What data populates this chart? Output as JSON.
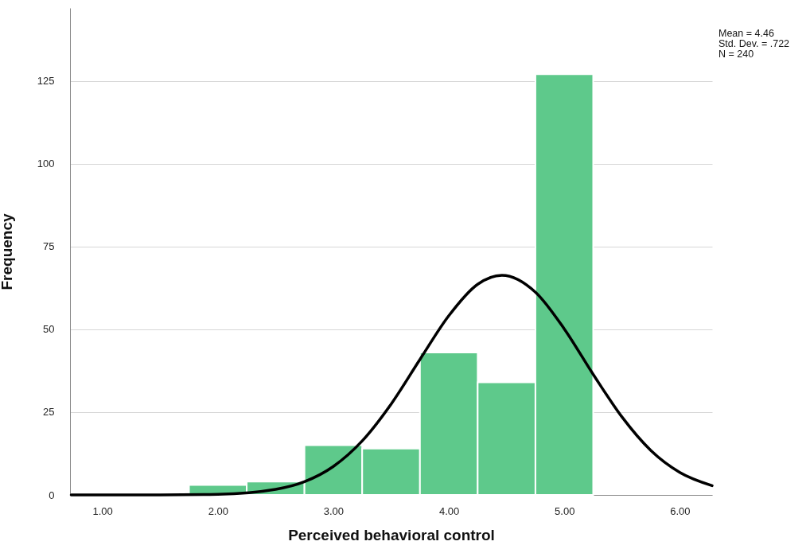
{
  "chart_data": {
    "type": "histogram",
    "xlabel": "Perceived behavioral control",
    "ylabel": "Frequency",
    "bins": [
      1.75,
      2.25,
      2.75,
      3.25,
      3.75,
      4.25,
      4.75,
      5.25
    ],
    "values": [
      3,
      4,
      15,
      14,
      43,
      34,
      127
    ],
    "color": "#5ec98b",
    "series": [
      {
        "type": "line",
        "color": "#000000",
        "x": [
          0.73,
          1.5,
          2.0,
          2.5,
          2.75,
          3.0,
          3.25,
          3.5,
          3.75,
          4.0,
          4.25,
          4.46,
          4.75,
          5.0,
          5.25,
          5.5,
          5.75,
          6.0,
          6.28
        ],
        "values": [
          0,
          0,
          0.2,
          1.7,
          4,
          8.6,
          16.3,
          27.4,
          40.9,
          54.1,
          63.6,
          66.3,
          61.2,
          50.1,
          36.4,
          23.5,
          13.4,
          6.8,
          2.8
        ]
      }
    ],
    "xlim": [
      0.72,
      6.28
    ],
    "xticks": [
      {
        "value": 1,
        "label": "1.00"
      },
      {
        "value": 2,
        "label": "2.00"
      },
      {
        "value": 3,
        "label": "3.00"
      },
      {
        "value": 4,
        "label": "4.00"
      },
      {
        "value": 5,
        "label": "5.00"
      },
      {
        "value": 6,
        "label": "6.00"
      }
    ],
    "ylim": [
      0,
      147
    ],
    "yticks": [
      0,
      25,
      50,
      75,
      100,
      125
    ],
    "grid": "y",
    "annotations": [
      "Mean = 4.46",
      "Std. Dev. = .722",
      "N = 240"
    ]
  }
}
